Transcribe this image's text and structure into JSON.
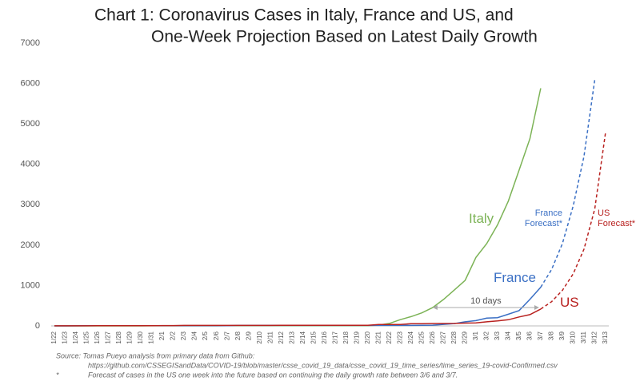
{
  "chart_data": {
    "type": "line",
    "title": [
      "Chart 1: Coronavirus Cases in Italy, France and US, and",
      "One-Week Projection Based on Latest Daily Growth"
    ],
    "categories": [
      "1/22",
      "1/23",
      "1/24",
      "1/25",
      "1/26",
      "1/27",
      "1/28",
      "1/29",
      "1/30",
      "1/31",
      "2/1",
      "2/2",
      "2/3",
      "2/4",
      "2/5",
      "2/6",
      "2/7",
      "2/8",
      "2/9",
      "2/10",
      "2/11",
      "2/12",
      "2/13",
      "2/14",
      "2/15",
      "2/16",
      "2/17",
      "2/18",
      "2/19",
      "2/20",
      "2/21",
      "2/22",
      "2/23",
      "2/24",
      "2/25",
      "2/26",
      "2/27",
      "2/28",
      "2/29",
      "3/1",
      "3/2",
      "3/3",
      "3/4",
      "3/5",
      "3/6",
      "3/7",
      "3/8",
      "3/9",
      "3/10",
      "3/11",
      "3/12",
      "3/13"
    ],
    "series": [
      {
        "name": "Italy",
        "color": "#7cb356",
        "dashed": false,
        "values": [
          0,
          0,
          0,
          0,
          0,
          0,
          0,
          0,
          0,
          2,
          2,
          2,
          2,
          2,
          2,
          2,
          3,
          3,
          3,
          3,
          3,
          3,
          3,
          3,
          3,
          3,
          3,
          3,
          3,
          3,
          20,
          62,
          155,
          229,
          322,
          453,
          655,
          888,
          1128,
          1694,
          2036,
          2502,
          3089,
          3858,
          4636,
          5883,
          null,
          null,
          null,
          null,
          null,
          null
        ]
      },
      {
        "name": "France",
        "color": "#3a6fc4",
        "dashed": false,
        "values": [
          0,
          0,
          2,
          3,
          3,
          3,
          4,
          5,
          5,
          5,
          6,
          6,
          6,
          6,
          6,
          6,
          6,
          11,
          11,
          11,
          11,
          11,
          11,
          11,
          12,
          12,
          12,
          12,
          12,
          12,
          12,
          12,
          12,
          12,
          14,
          18,
          38,
          57,
          100,
          130,
          191,
          204,
          288,
          380,
          656,
          957,
          null,
          null,
          null,
          null,
          null,
          null
        ]
      },
      {
        "name": "US",
        "color": "#b8211f",
        "dashed": false,
        "values": [
          1,
          1,
          2,
          2,
          5,
          5,
          5,
          5,
          5,
          6,
          8,
          8,
          11,
          11,
          11,
          12,
          12,
          12,
          12,
          12,
          12,
          13,
          13,
          14,
          15,
          15,
          15,
          15,
          15,
          15,
          35,
          35,
          35,
          53,
          53,
          59,
          60,
          62,
          70,
          76,
          101,
          122,
          153,
          221,
          278,
          417,
          null,
          null,
          null,
          null,
          null,
          null
        ]
      },
      {
        "name": "France Forecast*",
        "color": "#3a6fc4",
        "dashed": true,
        "values": [
          null,
          null,
          null,
          null,
          null,
          null,
          null,
          null,
          null,
          null,
          null,
          null,
          null,
          null,
          null,
          null,
          null,
          null,
          null,
          null,
          null,
          null,
          null,
          null,
          null,
          null,
          null,
          null,
          null,
          null,
          null,
          null,
          null,
          null,
          null,
          null,
          null,
          null,
          null,
          null,
          null,
          null,
          null,
          null,
          null,
          957,
          1396,
          2036,
          2970,
          4200,
          6100,
          null
        ]
      },
      {
        "name": "US Forecast*",
        "color": "#b8211f",
        "dashed": true,
        "values": [
          null,
          null,
          null,
          null,
          null,
          null,
          null,
          null,
          null,
          null,
          null,
          null,
          null,
          null,
          null,
          null,
          null,
          null,
          null,
          null,
          null,
          null,
          null,
          null,
          null,
          null,
          null,
          null,
          null,
          null,
          null,
          null,
          null,
          null,
          null,
          null,
          null,
          null,
          null,
          null,
          null,
          null,
          null,
          null,
          null,
          417,
          600,
          880,
          1290,
          1900,
          2900,
          4800
        ]
      }
    ],
    "ylim": [
      0,
      7000
    ],
    "yticks": [
      0,
      1000,
      2000,
      3000,
      4000,
      5000,
      6000,
      7000
    ],
    "grid": false,
    "annotation": "10 days",
    "source": "Source: Tomas Pueyo analysis from primary data from Github:",
    "source_url": "https://github.com/CSSEGISandData/COVID-19/blob/master/csse_covid_19_data/csse_covid_19_time_series/time_series_19-covid-Confirmed.csv",
    "footnote_marker": "*",
    "footnote": "Forecast of cases in the US one week into the future based on continuing the daily growth rate between 3/6 and 3/7."
  }
}
